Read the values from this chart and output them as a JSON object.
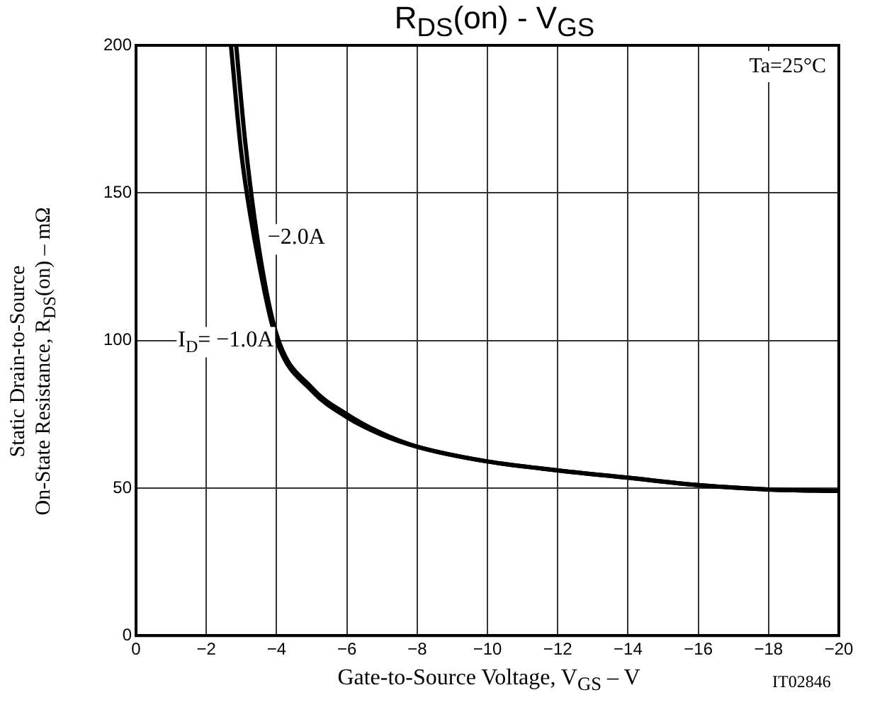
{
  "chart_data": {
    "type": "line",
    "title": "R$_{DS}$(on) - V$_{GS}$",
    "xlabel": "Gate-to-Source Voltage, V$_{GS}$ – V",
    "ylabel": "Static Drain-to-Source\nOn-State Resistance, R$_{DS}$(on) – mΩ",
    "annotations": [
      "Ta=25°C",
      "IT02846"
    ],
    "series": [
      {
        "name": "I$_{D}$= −1.0A",
        "color": "#000000",
        "x": [
          -2.7,
          -3,
          -3.5,
          -4,
          -5,
          -6,
          -7,
          -8,
          -10,
          -12,
          -14,
          -16,
          -18,
          -20
        ],
        "values": [
          200,
          163,
          126,
          100,
          83,
          74,
          68,
          64,
          59,
          56,
          53.5,
          51,
          49.5,
          49
        ]
      },
      {
        "name": "−2.0A",
        "color": "#000000",
        "x": [
          -2.85,
          -3.1,
          -3.5,
          -4,
          -5,
          -6,
          -7,
          -8,
          -10,
          -12,
          -14,
          -16,
          -18,
          -20
        ],
        "values": [
          200,
          168,
          131,
          102,
          84,
          75,
          68.5,
          64,
          59,
          56,
          53.5,
          51,
          49.5,
          49
        ]
      }
    ],
    "xlim": [
      0,
      -20
    ],
    "xticks": [
      0,
      -2,
      -4,
      -6,
      -8,
      -10,
      -12,
      -14,
      -16,
      -18,
      -20
    ],
    "ylim": [
      0,
      200
    ],
    "yticks": [
      0,
      50,
      100,
      150,
      200
    ],
    "grid": true,
    "marker": "none",
    "line_style": "solid"
  }
}
